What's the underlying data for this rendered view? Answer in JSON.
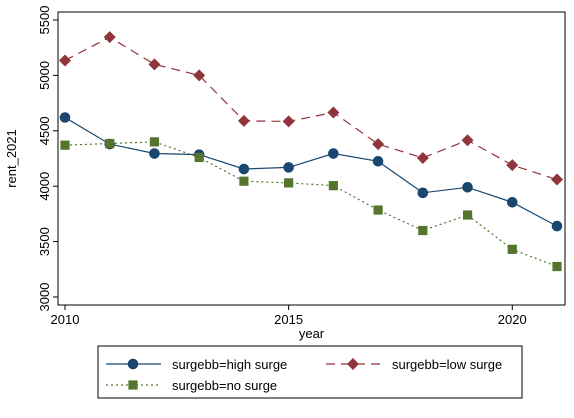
{
  "chart_data": {
    "type": "line",
    "xlabel": "year",
    "ylabel": "rent_2021",
    "xlim": [
      2010,
      2021
    ],
    "ylim": [
      3000,
      5500
    ],
    "x_ticks": [
      2010,
      2015,
      2020
    ],
    "x_tick_labels": [
      "2010",
      "2015",
      "2020"
    ],
    "y_ticks": [
      3000,
      3500,
      4000,
      4500,
      5000,
      5500
    ],
    "y_tick_labels": [
      "3000",
      "3500",
      "4000",
      "4500",
      "5000",
      "5500"
    ],
    "grid": false,
    "legend_position": "bottom",
    "x": [
      2010,
      2011,
      2012,
      2013,
      2014,
      2015,
      2016,
      2017,
      2018,
      2019,
      2020,
      2021
    ],
    "series": [
      {
        "name": "surgebb=high surge",
        "values": [
          4620,
          4380,
          4295,
          4285,
          4155,
          4170,
          4295,
          4225,
          3940,
          3990,
          3855,
          3640
        ],
        "color": "#1a476f",
        "marker": "circle",
        "line": "solid"
      },
      {
        "name": "surgebb=low surge",
        "values": [
          5135,
          5345,
          5100,
          5000,
          4590,
          4585,
          4665,
          4380,
          4255,
          4415,
          4190,
          4060
        ],
        "color": "#90353b",
        "marker": "diamond",
        "line": "dashed"
      },
      {
        "name": "surgebb=no surge",
        "values": [
          4370,
          4385,
          4400,
          4260,
          4045,
          4030,
          4005,
          3785,
          3600,
          3740,
          3430,
          3275
        ],
        "color": "#55752f",
        "marker": "square",
        "line": "dotted"
      }
    ]
  }
}
